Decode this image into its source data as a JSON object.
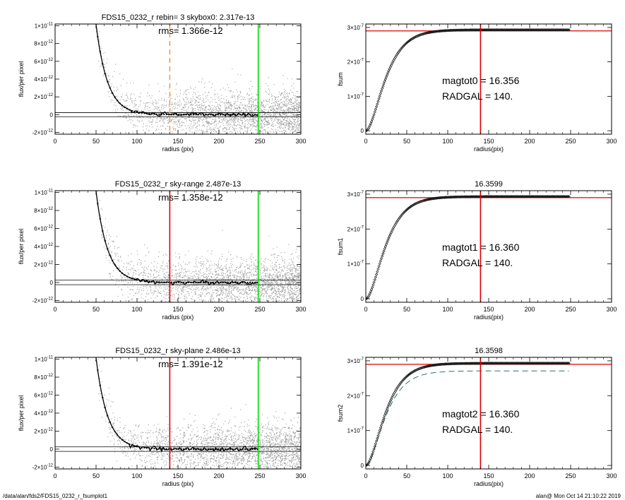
{
  "footer": {
    "left": "/data/alan/fds2/FDS15_0232_r_fsumplot1",
    "right": "alan@  Mon Oct 14 21:10:22 2019"
  },
  "colors": {
    "points": "#9a9a9a",
    "profile": "#000000",
    "red": "#e00000",
    "green": "#00dd00",
    "orange": "#f0a040",
    "band": "#c8c8c8",
    "dash": "#2f6f6f"
  },
  "chart_data": [
    {
      "type": "scatter",
      "title": "FDS15_0232_r rebin= 3    skybox0:  2.317e-13",
      "annotation": "rms= 1.366e-12",
      "xlabel": "radius (pix)",
      "ylabel": "flux/per pixel",
      "xlim": [
        0,
        300
      ],
      "ylim": [
        -2.2e-12,
        1.02e-11
      ],
      "xticks": [
        "0",
        "50",
        "100",
        "150",
        "200",
        "250",
        "300"
      ],
      "yticks": [
        {
          "v": -2e-12,
          "b": "-2×10",
          "e": "-12"
        },
        {
          "v": 0,
          "b": "0",
          "e": ""
        },
        {
          "v": 2e-12,
          "b": "2×10",
          "e": "-12"
        },
        {
          "v": 4e-12,
          "b": "4×10",
          "e": "-12"
        },
        {
          "v": 6e-12,
          "b": "6×10",
          "e": "-12"
        },
        {
          "v": 8e-12,
          "b": "8×10",
          "e": "-12"
        },
        {
          "v": 1e-11,
          "b": "1×10",
          "e": "-11"
        }
      ],
      "hlines": [
        2.3e-13,
        -2.3e-13
      ],
      "vlines": [
        {
          "x": 140,
          "color": "orange",
          "dashed": true
        },
        {
          "x": 248,
          "color": "green",
          "dashed": false
        }
      ],
      "profile": {
        "a": 3.6e-10,
        "scale": 14.0,
        "floor": 0
      },
      "scatter_sigma": 1.37e-12
    },
    {
      "type": "scatter",
      "title": "FDS15_0232_r sky-range  2.487e-13",
      "annotation": "rms= 1.358e-12",
      "xlabel": "radius (pix)",
      "ylabel": "flux/per pixel",
      "xlim": [
        0,
        300
      ],
      "ylim": [
        -2.2e-12,
        1.02e-11
      ],
      "xticks": [
        "0",
        "50",
        "100",
        "150",
        "200",
        "250",
        "300"
      ],
      "yticks": [
        {
          "v": -2e-12,
          "b": "-2×10",
          "e": "-12"
        },
        {
          "v": 0,
          "b": "0",
          "e": ""
        },
        {
          "v": 2e-12,
          "b": "2×10",
          "e": "-12"
        },
        {
          "v": 4e-12,
          "b": "4×10",
          "e": "-12"
        },
        {
          "v": 6e-12,
          "b": "6×10",
          "e": "-12"
        },
        {
          "v": 8e-12,
          "b": "8×10",
          "e": "-12"
        },
        {
          "v": 1e-11,
          "b": "1×10",
          "e": "-11"
        }
      ],
      "hlines": [
        2.5e-13,
        -2.5e-13
      ],
      "vlines": [
        {
          "x": 140,
          "color": "red",
          "dashed": false
        },
        {
          "x": 248,
          "color": "green",
          "dashed": false
        }
      ],
      "profile": {
        "a": 3.6e-10,
        "scale": 14.0,
        "floor": 0
      },
      "scatter_sigma": 1.36e-12
    },
    {
      "type": "scatter",
      "title": "FDS15_0232_r sky-plane  2.486e-13",
      "annotation": "rms= 1.391e-12",
      "xlabel": "radius (pix)",
      "ylabel": "flux/per pixel",
      "xlim": [
        0,
        300
      ],
      "ylim": [
        -2.2e-12,
        1.02e-11
      ],
      "xticks": [
        "0",
        "50",
        "100",
        "150",
        "200",
        "250",
        "300"
      ],
      "yticks": [
        {
          "v": -2e-12,
          "b": "-2×10",
          "e": "-12"
        },
        {
          "v": 0,
          "b": "0",
          "e": ""
        },
        {
          "v": 2e-12,
          "b": "2×10",
          "e": "-12"
        },
        {
          "v": 4e-12,
          "b": "4×10",
          "e": "-12"
        },
        {
          "v": 6e-12,
          "b": "6×10",
          "e": "-12"
        },
        {
          "v": 8e-12,
          "b": "8×10",
          "e": "-12"
        },
        {
          "v": 1e-11,
          "b": "1×10",
          "e": "-11"
        }
      ],
      "hlines": [
        2.5e-13,
        -2.5e-13
      ],
      "vlines": [
        {
          "x": 140,
          "color": "red",
          "dashed": false
        },
        {
          "x": 248,
          "color": "green",
          "dashed": false
        }
      ],
      "profile": {
        "a": 3.6e-10,
        "scale": 14.0,
        "floor": 0
      },
      "scatter_sigma": 1.39e-12
    },
    {
      "type": "line",
      "title": "",
      "xlabel": "radius(pix)",
      "ylabel": "fsum",
      "annotations": [
        "magtot0 =  16.356",
        "RADGAL =    140."
      ],
      "xlim": [
        0,
        300
      ],
      "ylim": [
        -1e-08,
        3.1e-07
      ],
      "xticks": [
        "0",
        "50",
        "100",
        "150",
        "200",
        "250",
        "300"
      ],
      "yticks": [
        {
          "v": 0,
          "b": "0",
          "e": ""
        },
        {
          "v": 1e-07,
          "b": "1×10",
          "e": "-7"
        },
        {
          "v": 2e-07,
          "b": "2×10",
          "e": "-7"
        },
        {
          "v": 3e-07,
          "b": "3×10",
          "e": "-7"
        }
      ],
      "total": 2.93e-07,
      "hline": 2.9e-07,
      "vline": 140,
      "growth_scale": 14.0,
      "xmax_data": 248,
      "dashed_curve": null
    },
    {
      "type": "line",
      "title": "16.3599",
      "xlabel": "radius(pix)",
      "ylabel": "fsum1",
      "annotations": [
        "magtot1 =  16.360",
        "RADGAL =    140."
      ],
      "xlim": [
        0,
        300
      ],
      "ylim": [
        -1e-08,
        3.1e-07
      ],
      "xticks": [
        "0",
        "50",
        "100",
        "150",
        "200",
        "250",
        "300"
      ],
      "yticks": [
        {
          "v": 0,
          "b": "0",
          "e": ""
        },
        {
          "v": 1e-07,
          "b": "1×10",
          "e": "-7"
        },
        {
          "v": 2e-07,
          "b": "2×10",
          "e": "-7"
        },
        {
          "v": 3e-07,
          "b": "3×10",
          "e": "-7"
        }
      ],
      "total": 2.93e-07,
      "hline": 2.9e-07,
      "vline": 140,
      "growth_scale": 14.0,
      "xmax_data": 248,
      "dashed_curve": null
    },
    {
      "type": "line",
      "title": "16.3598",
      "xlabel": "radius(pix)",
      "ylabel": "fsum2",
      "annotations": [
        "magtot2 =  16.360",
        "RADGAL =    140."
      ],
      "xlim": [
        0,
        300
      ],
      "ylim": [
        -1e-08,
        3.1e-07
      ],
      "xticks": [
        "0",
        "50",
        "100",
        "150",
        "200",
        "250",
        "300"
      ],
      "yticks": [
        {
          "v": 0,
          "b": "0",
          "e": ""
        },
        {
          "v": 1e-07,
          "b": "1×10",
          "e": "-7"
        },
        {
          "v": 2e-07,
          "b": "2×10",
          "e": "-7"
        },
        {
          "v": 3e-07,
          "b": "3×10",
          "e": "-7"
        }
      ],
      "total": 2.93e-07,
      "hline": 2.9e-07,
      "vline": 140,
      "growth_scale": 14.0,
      "xmax_data": 248,
      "dashed_curve": {
        "total": 2.71e-07,
        "xmax": 248
      }
    }
  ]
}
